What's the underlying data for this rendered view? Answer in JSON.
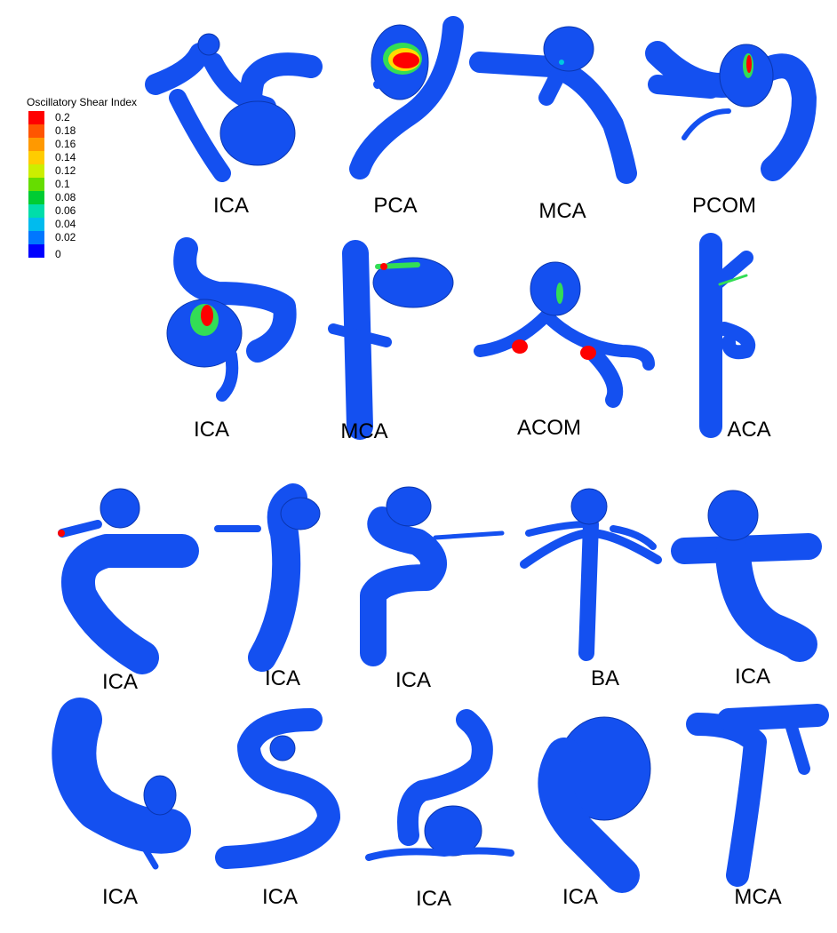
{
  "legend": {
    "title": "Oscillatory Shear Index",
    "ticks": [
      "0.2",
      "0.18",
      "0.16",
      "0.14",
      "0.12",
      "0.1",
      "0.08",
      "0.06",
      "0.04",
      "0.02",
      "0"
    ],
    "colors": [
      "#ff0000",
      "#ff5500",
      "#ff9900",
      "#ffcc00",
      "#ccee00",
      "#66dd00",
      "#00cc33",
      "#00ddaa",
      "#00bbee",
      "#0077ff",
      "#0000ff"
    ]
  },
  "colors": {
    "vessel": "#1450f0",
    "vessel_stroke": "#0a36b0",
    "hot": "#ff0000",
    "warm": "#ffdd00",
    "mid": "#33dd55",
    "cool": "#00c8e0"
  },
  "panels": [
    {
      "label": "ICA"
    },
    {
      "label": "PCA"
    },
    {
      "label": "MCA"
    },
    {
      "label": "PCOM"
    },
    {
      "label": "ICA"
    },
    {
      "label": "MCA"
    },
    {
      "label": "ACOM"
    },
    {
      "label": "ACA"
    },
    {
      "label": "ICA"
    },
    {
      "label": "ICA"
    },
    {
      "label": "ICA"
    },
    {
      "label": "BA"
    },
    {
      "label": "ICA"
    },
    {
      "label": "ICA"
    },
    {
      "label": "ICA"
    },
    {
      "label": "ICA"
    },
    {
      "label": "ICA"
    },
    {
      "label": "MCA"
    }
  ]
}
